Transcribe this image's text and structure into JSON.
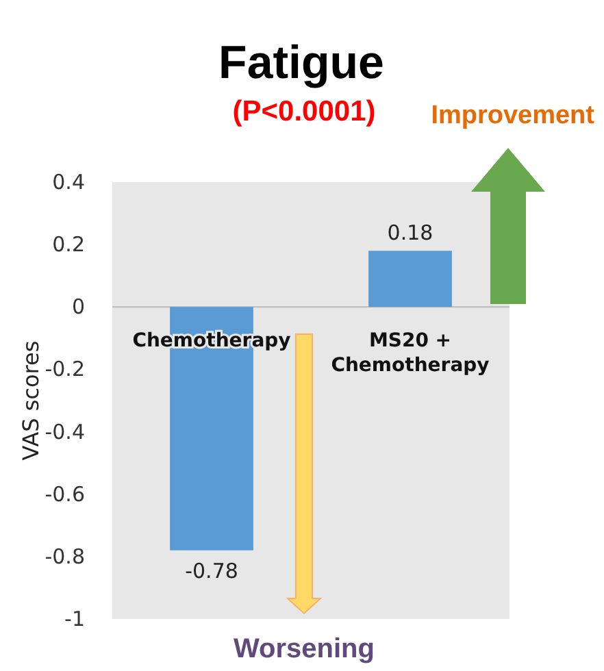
{
  "chart_data": {
    "type": "bar",
    "title": "Fatigue",
    "subtitle": "(P<0.0001)",
    "ylabel": "VAS scores",
    "categories": [
      "Chemotherapy",
      "MS20 + Chemotherapy"
    ],
    "values": [
      -0.78,
      0.18
    ],
    "color": "#5b9bd5",
    "data_labels": true,
    "ylim": [
      -1,
      0.4
    ],
    "yticks": [
      -1,
      -0.8,
      -0.6,
      -0.4,
      -0.2,
      0,
      0.2,
      0.4
    ],
    "grid": false,
    "annotations": [
      "Improvement",
      "Worsening"
    ]
  }
}
